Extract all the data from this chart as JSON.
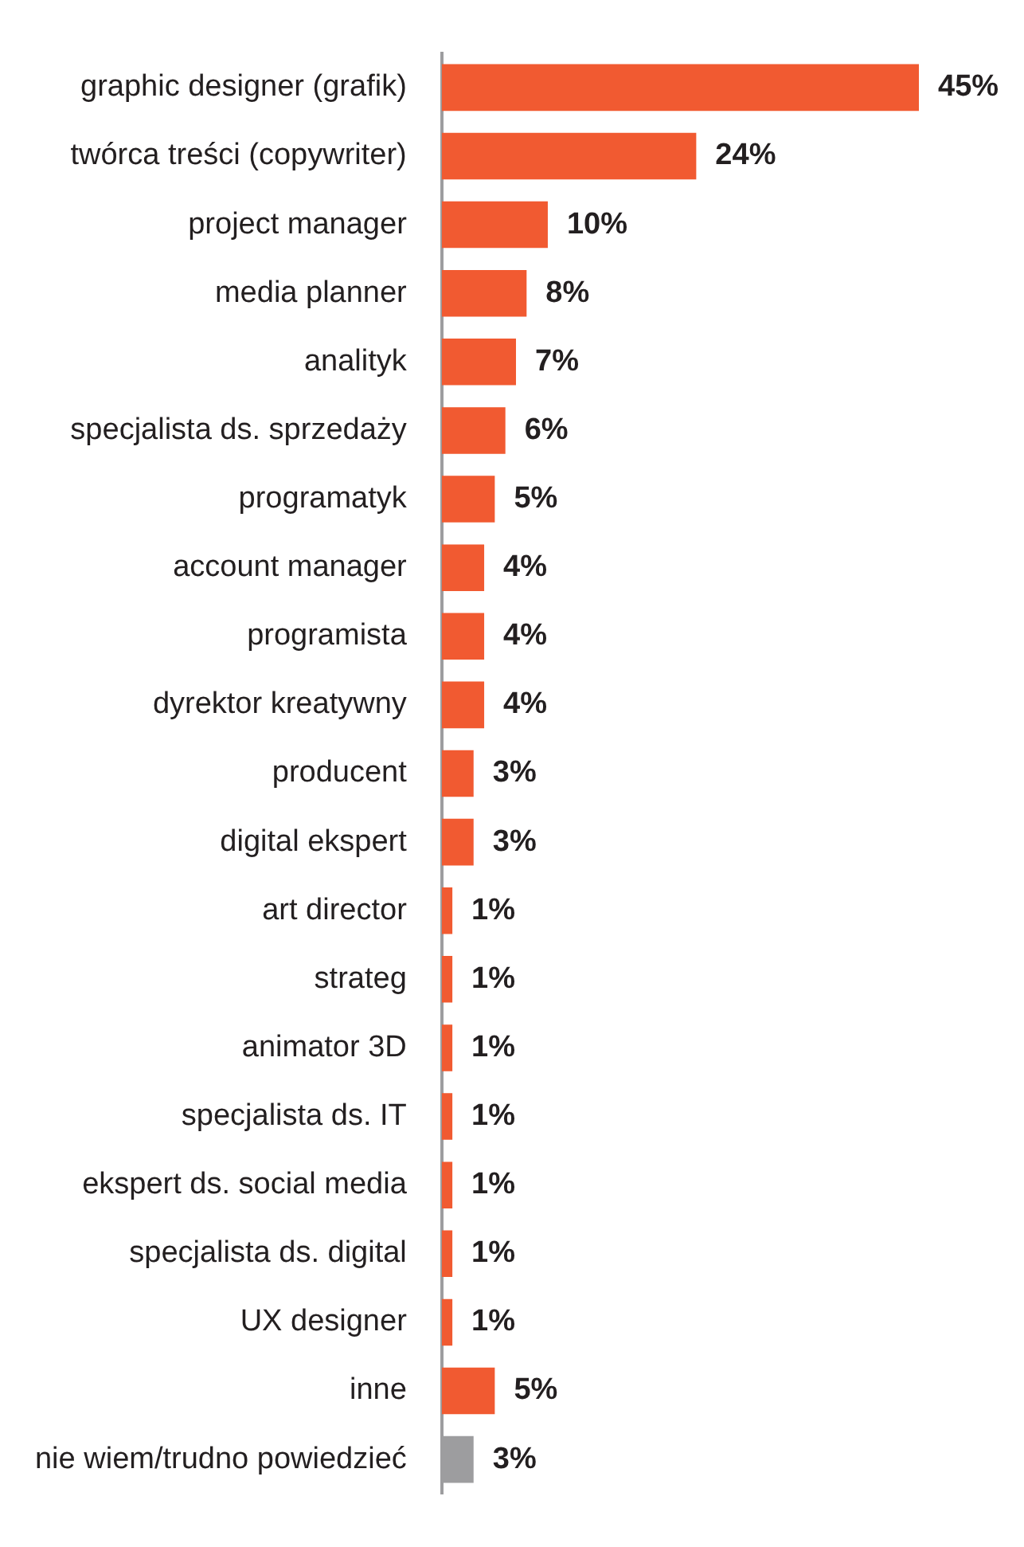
{
  "chart_data": {
    "type": "bar",
    "orientation": "horizontal",
    "categories": [
      "graphic designer (grafik)",
      "twórca treści (copywriter)",
      "project manager",
      "media planner",
      "analityk",
      "specjalista ds. sprzedaży",
      "programatyk",
      "account manager",
      "programista",
      "dyrektor kreatywny",
      "producent",
      "digital ekspert",
      "art director",
      "strateg",
      "animator 3D",
      "specjalista ds. IT",
      "ekspert ds. social media",
      "specjalista ds. digital",
      "UX designer",
      "inne",
      "nie wiem/trudno powiedzieć"
    ],
    "values": [
      45,
      24,
      10,
      8,
      7,
      6,
      5,
      4,
      4,
      4,
      3,
      3,
      1,
      1,
      1,
      1,
      1,
      1,
      1,
      5,
      3
    ],
    "value_labels": [
      "45%",
      "24%",
      "10%",
      "8%",
      "7%",
      "6%",
      "5%",
      "4%",
      "4%",
      "4%",
      "3%",
      "3%",
      "1%",
      "1%",
      "1%",
      "1%",
      "1%",
      "1%",
      "1%",
      "5%",
      "3%"
    ],
    "colors": [
      "#f15a31",
      "#f15a31",
      "#f15a31",
      "#f15a31",
      "#f15a31",
      "#f15a31",
      "#f15a31",
      "#f15a31",
      "#f15a31",
      "#f15a31",
      "#f15a31",
      "#f15a31",
      "#f15a31",
      "#f15a31",
      "#f15a31",
      "#f15a31",
      "#f15a31",
      "#f15a31",
      "#f15a31",
      "#f15a31",
      "#9d9d9f"
    ],
    "legend": false
  }
}
